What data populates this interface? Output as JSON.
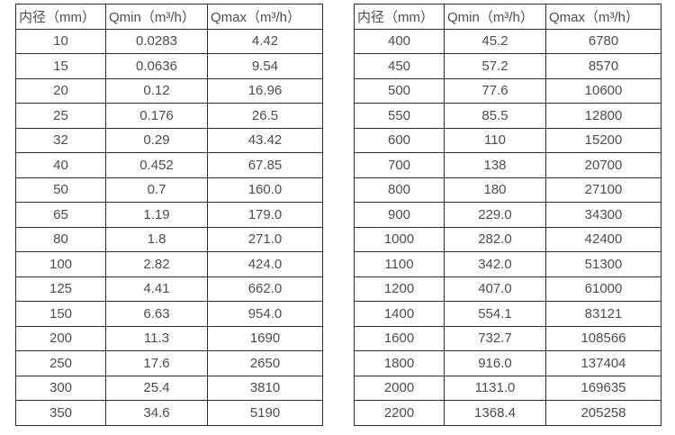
{
  "page": {
    "background": "#ffffff",
    "text_color": "#4d4d4d",
    "border_color": "#2e2e2e"
  },
  "tables": [
    {
      "name": "flow-spec-table-small-diameters",
      "headers": [
        "内径（mm）",
        "Qmin（m³/h）",
        "Qmax（m³/h）"
      ],
      "rows": [
        [
          "10",
          "0.0283",
          "4.42"
        ],
        [
          "15",
          "0.0636",
          "9.54"
        ],
        [
          "20",
          "0.12",
          "16.96"
        ],
        [
          "25",
          "0.176",
          "26.5"
        ],
        [
          "32",
          "0.29",
          "43.42"
        ],
        [
          "40",
          "0.452",
          "67.85"
        ],
        [
          "50",
          "0.7",
          "160.0"
        ],
        [
          "65",
          "1.19",
          "179.0"
        ],
        [
          "80",
          "1.8",
          "271.0"
        ],
        [
          "100",
          "2.82",
          "424.0"
        ],
        [
          "125",
          "4.41",
          "662.0"
        ],
        [
          "150",
          "6.63",
          "954.0"
        ],
        [
          "200",
          "11.3",
          "1690"
        ],
        [
          "250",
          "17.6",
          "2650"
        ],
        [
          "300",
          "25.4",
          "3810"
        ],
        [
          "350",
          "34.6",
          "5190"
        ]
      ]
    },
    {
      "name": "flow-spec-table-large-diameters",
      "headers": [
        "内径（mm）",
        "Qmin（m³/h）",
        "Qmax（m³/h）"
      ],
      "rows": [
        [
          "400",
          "45.2",
          "6780"
        ],
        [
          "450",
          "57.2",
          "8570"
        ],
        [
          "500",
          "77.6",
          "10600"
        ],
        [
          "550",
          "85.5",
          "12800"
        ],
        [
          "600",
          "110",
          "15200"
        ],
        [
          "700",
          "138",
          "20700"
        ],
        [
          "800",
          "180",
          "27100"
        ],
        [
          "900",
          "229.0",
          "34300"
        ],
        [
          "1000",
          "282.0",
          "42400"
        ],
        [
          "1100",
          "342.0",
          "51300"
        ],
        [
          "1200",
          "407.0",
          "61000"
        ],
        [
          "1400",
          "554.1",
          "83121"
        ],
        [
          "1600",
          "732.7",
          "108566"
        ],
        [
          "1800",
          "916.0",
          "137404"
        ],
        [
          "2000",
          "1131.0",
          "169635"
        ],
        [
          "2200",
          "1368.4",
          "205258"
        ]
      ]
    }
  ]
}
